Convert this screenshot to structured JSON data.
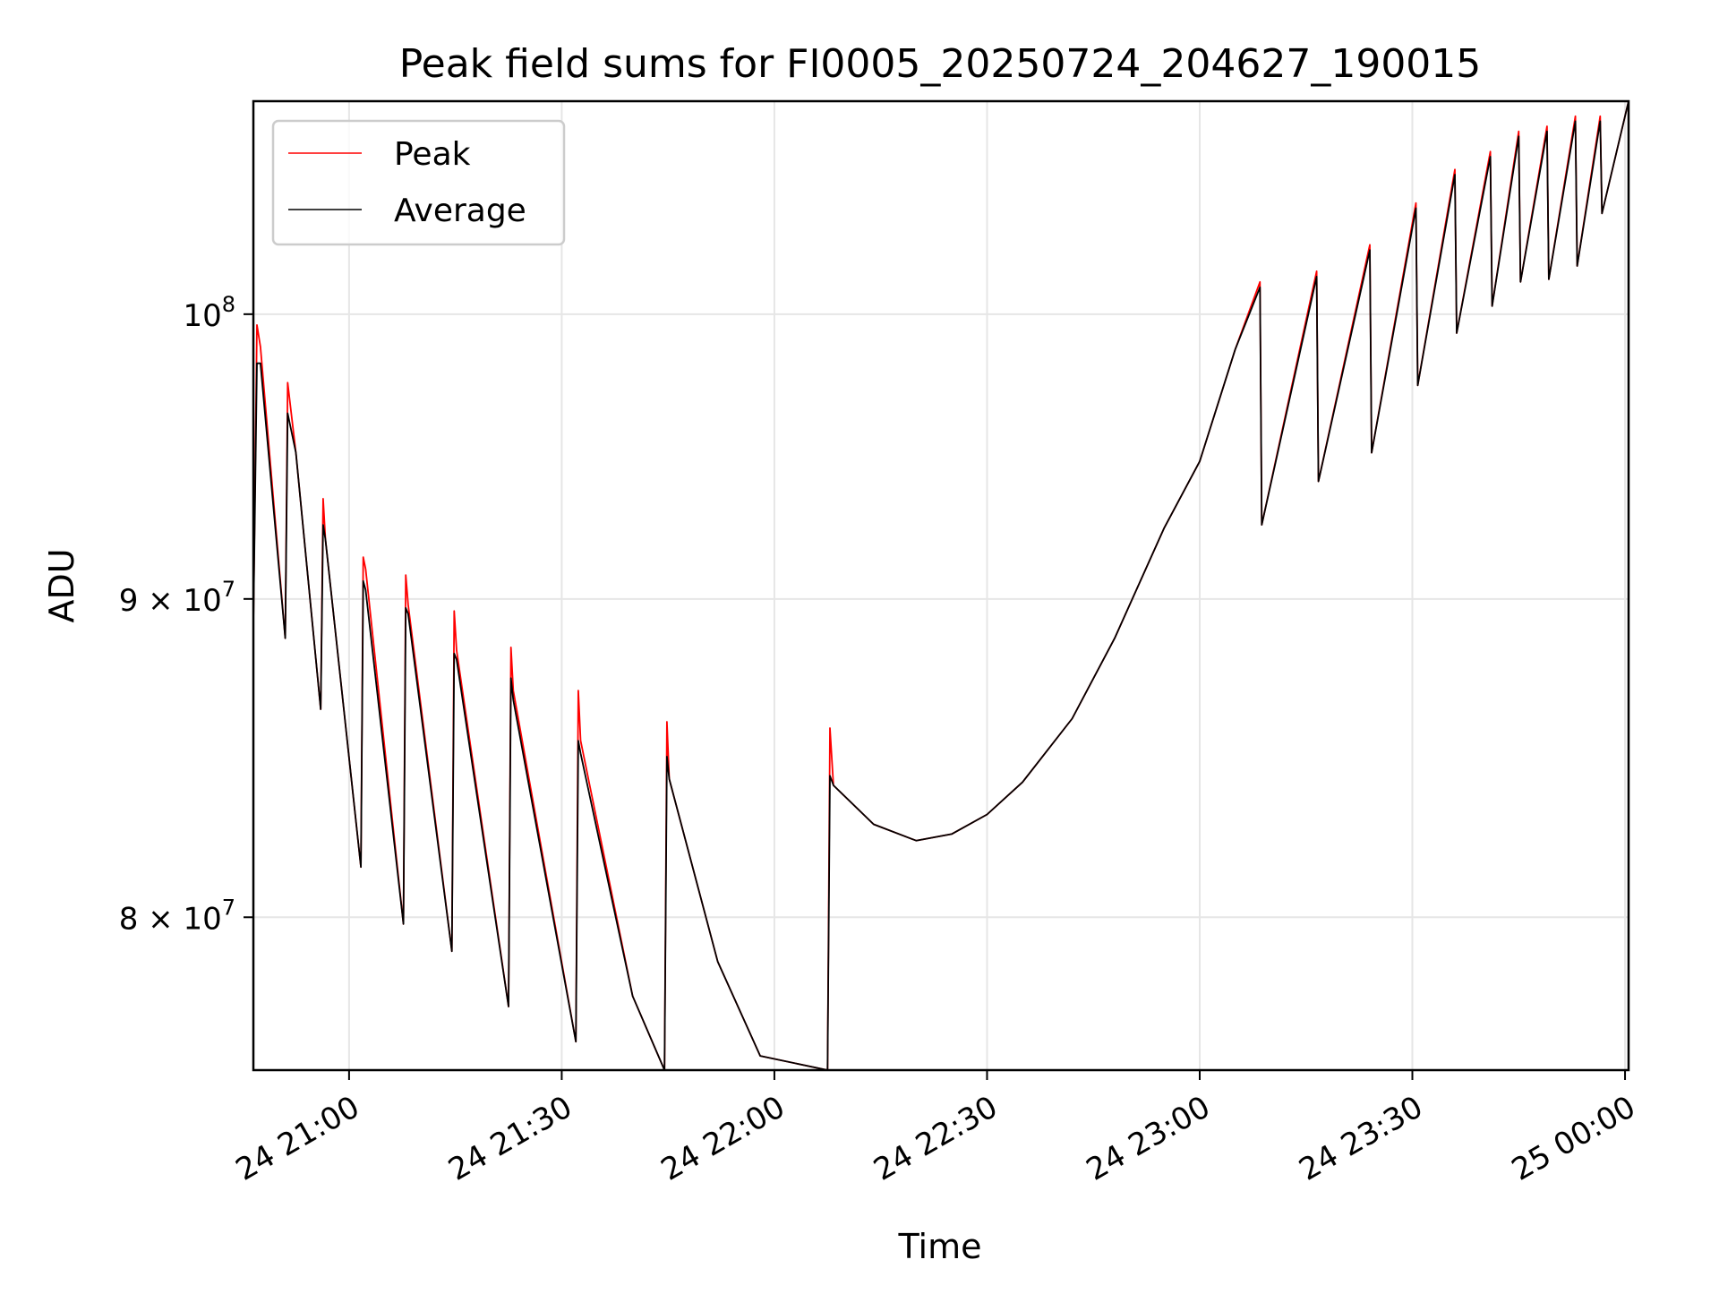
{
  "chart_data": {
    "type": "line",
    "title": "Peak field sums for FI0005_20250724_204627_190015",
    "xlabel": "Time",
    "ylabel": "ADU",
    "y_scale": "log",
    "ylim": [
      75600000,
      108200000
    ],
    "xlim": [
      "2025-07-24 20:46:30",
      "2025-07-25 00:00:30"
    ],
    "grid": true,
    "legend_position": "top-left",
    "x_ticks": [
      {
        "at": "2025-07-24 21:00",
        "label": "24 21:00"
      },
      {
        "at": "2025-07-24 21:30",
        "label": "24 21:30"
      },
      {
        "at": "2025-07-24 22:00",
        "label": "24 22:00"
      },
      {
        "at": "2025-07-24 22:30",
        "label": "24 22:30"
      },
      {
        "at": "2025-07-24 23:00",
        "label": "24 23:00"
      },
      {
        "at": "2025-07-24 23:30",
        "label": "24 23:30"
      },
      {
        "at": "2025-07-25 00:00",
        "label": "25 00:00"
      }
    ],
    "y_ticks": [
      {
        "value": 80000000,
        "base": "8 × 10",
        "exp": "7"
      },
      {
        "value": 90000000,
        "base": "9 × 10",
        "exp": "7"
      },
      {
        "value": 100000000,
        "base": "10",
        "exp": "8"
      }
    ],
    "series": [
      {
        "name": "Peak",
        "color": "#ff0000",
        "points": [
          [
            "2025-07-24 20:46:30",
            89200000
          ],
          [
            "2025-07-24 20:47:00",
            99600000
          ],
          [
            "2025-07-24 20:47:30",
            98800000
          ],
          [
            "2025-07-24 20:51:00",
            88700000
          ],
          [
            "2025-07-24 20:51:20",
            97500000
          ],
          [
            "2025-07-24 20:52:30",
            95000000
          ],
          [
            "2025-07-24 20:56:00",
            86400000
          ],
          [
            "2025-07-24 20:56:20",
            93400000
          ],
          [
            "2025-07-24 20:56:40",
            92000000
          ],
          [
            "2025-07-24 21:01:40",
            81500000
          ],
          [
            "2025-07-24 21:02:00",
            91400000
          ],
          [
            "2025-07-24 21:02:20",
            91000000
          ],
          [
            "2025-07-24 21:07:40",
            79800000
          ],
          [
            "2025-07-24 21:08:00",
            90800000
          ],
          [
            "2025-07-24 21:08:20",
            89800000
          ],
          [
            "2025-07-24 21:14:30",
            79000000
          ],
          [
            "2025-07-24 21:14:50",
            89600000
          ],
          [
            "2025-07-24 21:15:10",
            88300000
          ],
          [
            "2025-07-24 21:22:30",
            77400000
          ],
          [
            "2025-07-24 21:22:50",
            88400000
          ],
          [
            "2025-07-24 21:23:10",
            87000000
          ],
          [
            "2025-07-24 21:32:00",
            76400000
          ],
          [
            "2025-07-24 21:32:20",
            87000000
          ],
          [
            "2025-07-24 21:32:40",
            85400000
          ],
          [
            "2025-07-24 21:40:00",
            77700000
          ],
          [
            "2025-07-24 21:44:30",
            75600000
          ],
          [
            "2025-07-24 21:44:50",
            86000000
          ],
          [
            "2025-07-24 21:45:10",
            84200000
          ],
          [
            "2025-07-24 21:52:00",
            78700000
          ],
          [
            "2025-07-24 21:58:00",
            76000000
          ],
          [
            "2025-07-24 22:07:30",
            75600000
          ],
          [
            "2025-07-24 22:07:50",
            85800000
          ],
          [
            "2025-07-24 22:08:20",
            84000000
          ],
          [
            "2025-07-24 22:14:00",
            82800000
          ],
          [
            "2025-07-24 22:20:00",
            82300000
          ],
          [
            "2025-07-24 22:25:00",
            82500000
          ],
          [
            "2025-07-24 22:30:00",
            83100000
          ],
          [
            "2025-07-24 22:35:00",
            84100000
          ],
          [
            "2025-07-24 22:42:00",
            86100000
          ],
          [
            "2025-07-24 22:48:00",
            88700000
          ],
          [
            "2025-07-24 22:55:00",
            92400000
          ],
          [
            "2025-07-24 23:00:00",
            94700000
          ],
          [
            "2025-07-24 23:05:00",
            98700000
          ],
          [
            "2025-07-24 23:08:30",
            101200000
          ],
          [
            "2025-07-24 23:08:45",
            92500000
          ],
          [
            "2025-07-24 23:16:30",
            101600000
          ],
          [
            "2025-07-24 23:16:45",
            94000000
          ],
          [
            "2025-07-24 23:24:00",
            102600000
          ],
          [
            "2025-07-24 23:24:15",
            95000000
          ],
          [
            "2025-07-24 23:30:30",
            104200000
          ],
          [
            "2025-07-24 23:30:45",
            97400000
          ],
          [
            "2025-07-24 23:36:00",
            105500000
          ],
          [
            "2025-07-24 23:36:15",
            99300000
          ],
          [
            "2025-07-24 23:41:00",
            106200000
          ],
          [
            "2025-07-24 23:41:15",
            100300000
          ],
          [
            "2025-07-24 23:45:00",
            107000000
          ],
          [
            "2025-07-24 23:45:15",
            101200000
          ],
          [
            "2025-07-24 23:49:00",
            107200000
          ],
          [
            "2025-07-24 23:49:15",
            101300000
          ],
          [
            "2025-07-24 23:53:00",
            107600000
          ],
          [
            "2025-07-24 23:53:15",
            101800000
          ],
          [
            "2025-07-24 23:56:30",
            107600000
          ],
          [
            "2025-07-24 23:56:45",
            103800000
          ],
          [
            "2025-07-25 00:00:30",
            108200000
          ]
        ]
      },
      {
        "name": "Average",
        "color": "#000000",
        "points": [
          [
            "2025-07-24 20:46:30",
            89200000
          ],
          [
            "2025-07-24 20:47:00",
            98200000
          ],
          [
            "2025-07-24 20:47:30",
            98200000
          ],
          [
            "2025-07-24 20:51:00",
            88700000
          ],
          [
            "2025-07-24 20:51:20",
            96400000
          ],
          [
            "2025-07-24 20:52:30",
            95000000
          ],
          [
            "2025-07-24 20:56:00",
            86400000
          ],
          [
            "2025-07-24 20:56:20",
            92500000
          ],
          [
            "2025-07-24 20:56:40",
            92000000
          ],
          [
            "2025-07-24 21:01:40",
            81500000
          ],
          [
            "2025-07-24 21:02:00",
            90600000
          ],
          [
            "2025-07-24 21:02:20",
            90300000
          ],
          [
            "2025-07-24 21:07:40",
            79800000
          ],
          [
            "2025-07-24 21:08:00",
            89700000
          ],
          [
            "2025-07-24 21:08:20",
            89500000
          ],
          [
            "2025-07-24 21:14:30",
            79000000
          ],
          [
            "2025-07-24 21:14:50",
            88200000
          ],
          [
            "2025-07-24 21:15:10",
            88000000
          ],
          [
            "2025-07-24 21:22:30",
            77400000
          ],
          [
            "2025-07-24 21:22:50",
            87400000
          ],
          [
            "2025-07-24 21:23:10",
            86700000
          ],
          [
            "2025-07-24 21:32:00",
            76400000
          ],
          [
            "2025-07-24 21:32:20",
            85400000
          ],
          [
            "2025-07-24 21:32:40",
            85000000
          ],
          [
            "2025-07-24 21:40:00",
            77700000
          ],
          [
            "2025-07-24 21:44:30",
            75600000
          ],
          [
            "2025-07-24 21:44:50",
            84900000
          ],
          [
            "2025-07-24 21:45:10",
            84200000
          ],
          [
            "2025-07-24 21:52:00",
            78700000
          ],
          [
            "2025-07-24 21:58:00",
            76000000
          ],
          [
            "2025-07-24 22:07:30",
            75600000
          ],
          [
            "2025-07-24 22:07:50",
            84300000
          ],
          [
            "2025-07-24 22:08:20",
            84000000
          ],
          [
            "2025-07-24 22:14:00",
            82800000
          ],
          [
            "2025-07-24 22:20:00",
            82300000
          ],
          [
            "2025-07-24 22:25:00",
            82500000
          ],
          [
            "2025-07-24 22:30:00",
            83100000
          ],
          [
            "2025-07-24 22:35:00",
            84100000
          ],
          [
            "2025-07-24 22:42:00",
            86100000
          ],
          [
            "2025-07-24 22:48:00",
            88700000
          ],
          [
            "2025-07-24 22:55:00",
            92400000
          ],
          [
            "2025-07-24 23:00:00",
            94700000
          ],
          [
            "2025-07-24 23:05:00",
            98700000
          ],
          [
            "2025-07-24 23:08:30",
            101000000
          ],
          [
            "2025-07-24 23:08:45",
            92500000
          ],
          [
            "2025-07-24 23:16:30",
            101400000
          ],
          [
            "2025-07-24 23:16:45",
            94000000
          ],
          [
            "2025-07-24 23:24:00",
            102400000
          ],
          [
            "2025-07-24 23:24:15",
            95000000
          ],
          [
            "2025-07-24 23:30:30",
            104000000
          ],
          [
            "2025-07-24 23:30:45",
            97400000
          ],
          [
            "2025-07-24 23:36:00",
            105300000
          ],
          [
            "2025-07-24 23:36:15",
            99300000
          ],
          [
            "2025-07-24 23:41:00",
            106000000
          ],
          [
            "2025-07-24 23:41:15",
            100300000
          ],
          [
            "2025-07-24 23:45:00",
            106800000
          ],
          [
            "2025-07-24 23:45:15",
            101200000
          ],
          [
            "2025-07-24 23:49:00",
            107000000
          ],
          [
            "2025-07-24 23:49:15",
            101300000
          ],
          [
            "2025-07-24 23:53:00",
            107400000
          ],
          [
            "2025-07-24 23:53:15",
            101800000
          ],
          [
            "2025-07-24 23:56:30",
            107400000
          ],
          [
            "2025-07-24 23:56:45",
            103800000
          ],
          [
            "2025-07-25 00:00:30",
            108200000
          ]
        ]
      }
    ]
  }
}
